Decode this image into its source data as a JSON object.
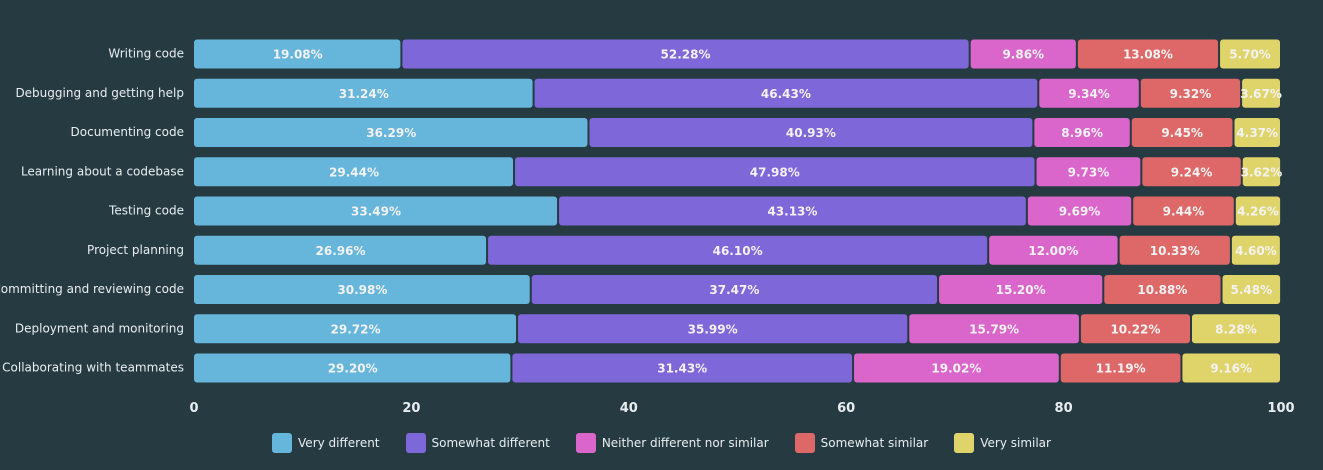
{
  "chart_data": {
    "type": "bar",
    "orientation": "horizontal",
    "stacked": true,
    "categories": [
      "Writing code",
      "Debugging and getting help",
      "Documenting code",
      "Learning about a codebase",
      "Testing code",
      "Project planning",
      "Committing and reviewing code",
      "Deployment and monitoring",
      "Collaborating with teammates"
    ],
    "series": [
      {
        "name": "Very different",
        "color": "#66b5db",
        "values": [
          19.08,
          31.24,
          36.29,
          29.44,
          33.49,
          26.96,
          30.98,
          29.72,
          29.2
        ],
        "labels": [
          "19.08%",
          "31.24%",
          "36.29%",
          "29.44%",
          "33.49%",
          "26.96%",
          "30.98%",
          "29.72%",
          "29.20%"
        ]
      },
      {
        "name": "Somewhat different",
        "color": "#7e67d8",
        "values": [
          52.28,
          46.43,
          40.93,
          47.98,
          43.13,
          46.1,
          37.47,
          35.99,
          31.43
        ],
        "labels": [
          "52.28%",
          "46.43%",
          "40.93%",
          "47.98%",
          "43.13%",
          "46.10%",
          "37.47%",
          "35.99%",
          "31.43%"
        ]
      },
      {
        "name": "Neither different nor similar",
        "color": "#db66cb",
        "values": [
          9.86,
          9.34,
          8.96,
          9.73,
          9.69,
          12.0,
          15.2,
          15.79,
          19.02
        ],
        "labels": [
          "9.86%",
          "9.34%",
          "8.96%",
          "9.73%",
          "9.69%",
          "12.00%",
          "15.20%",
          "15.79%",
          "19.02%"
        ]
      },
      {
        "name": "Somewhat similar",
        "color": "#de6868",
        "values": [
          13.08,
          9.32,
          9.45,
          9.24,
          9.44,
          10.33,
          10.88,
          10.22,
          11.19
        ],
        "labels": [
          "13.08%",
          "9.32%",
          "9.45%",
          "9.24%",
          "9.44%",
          "10.33%",
          "10.88%",
          "10.22%",
          "11.19%"
        ]
      },
      {
        "name": "Very similar",
        "color": "#dfd46a",
        "values": [
          5.7,
          3.67,
          4.37,
          3.62,
          4.26,
          4.6,
          5.48,
          8.28,
          9.16
        ],
        "labels": [
          "5.70%",
          "3.67%",
          "4.37%",
          "3.62%",
          "4.26%",
          "4.60%",
          "5.48%",
          "8.28%",
          "9.16%"
        ]
      }
    ],
    "xlim": [
      0,
      100
    ],
    "xticks": [
      "0",
      "20",
      "40",
      "60",
      "80",
      "100"
    ],
    "grid": false,
    "legend_position": "bottom"
  }
}
